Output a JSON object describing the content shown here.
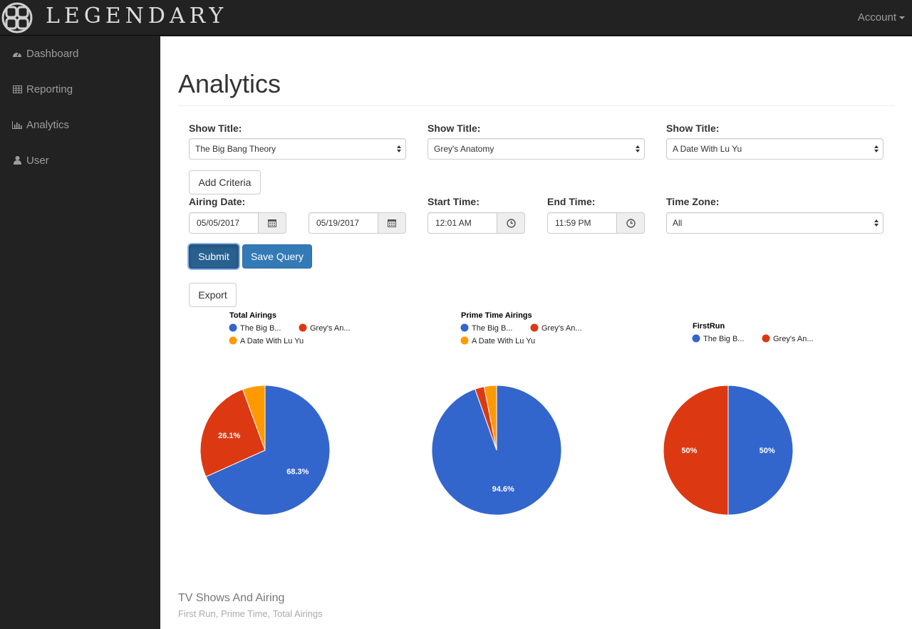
{
  "brand": {
    "name": "LEGENDARY"
  },
  "navbar": {
    "account_label": "Account"
  },
  "sidebar": {
    "items": [
      {
        "label": "Dashboard",
        "icon": "dashboard-icon"
      },
      {
        "label": "Reporting",
        "icon": "table-icon"
      },
      {
        "label": "Analytics",
        "icon": "bar-chart-icon"
      },
      {
        "label": "User",
        "icon": "user-icon"
      }
    ]
  },
  "page": {
    "title": "Analytics"
  },
  "filters": {
    "show_title_label": "Show Title:",
    "shows": [
      "The Big Bang Theory",
      "Grey's Anatomy",
      "A Date With Lu Yu"
    ],
    "add_criteria_label": "Add Criteria",
    "airing_date_label": "Airing Date:",
    "date_from": "05/05/2017",
    "date_to": "05/19/2017",
    "start_time_label": "Start Time:",
    "start_time": "12:01 AM",
    "end_time_label": "End Time:",
    "end_time": "11:59 PM",
    "time_zone_label": "Time Zone:",
    "time_zone": "All"
  },
  "actions": {
    "submit_label": "Submit",
    "save_query_label": "Save Query",
    "export_label": "Export"
  },
  "colors": {
    "blue": "#3366cc",
    "red": "#dc3912",
    "orange": "#ff9900",
    "primary": "#337ab7"
  },
  "chart_data": [
    {
      "type": "pie",
      "title": "Total Airings",
      "legend_labels": [
        "The Big B...",
        "Grey's An...",
        "A Date With Lu Yu"
      ],
      "series": [
        "The Big Bang Theory",
        "Grey's Anatomy",
        "A Date With Lu Yu"
      ],
      "values": [
        68.3,
        26.1,
        5.6
      ],
      "data_labels": [
        "68.3%",
        "26.1%",
        ""
      ]
    },
    {
      "type": "pie",
      "title": "Prime Time Airings",
      "legend_labels": [
        "The Big B...",
        "Grey's An...",
        "A Date With Lu Yu"
      ],
      "series": [
        "The Big Bang Theory",
        "Grey's Anatomy",
        "A Date With Lu Yu"
      ],
      "values": [
        94.6,
        2.3,
        3.1
      ],
      "data_labels": [
        "94.6%",
        "",
        ""
      ]
    },
    {
      "type": "pie",
      "title": "FirstRun",
      "legend_labels": [
        "The Big B...",
        "Grey's An..."
      ],
      "series": [
        "The Big Bang Theory",
        "Grey's Anatomy"
      ],
      "values": [
        50,
        50
      ],
      "data_labels": [
        "50%",
        "50%"
      ]
    }
  ],
  "footer": {
    "title": "TV Shows And Airing",
    "subtitle": "First Run, Prime Time, Total Airings"
  }
}
